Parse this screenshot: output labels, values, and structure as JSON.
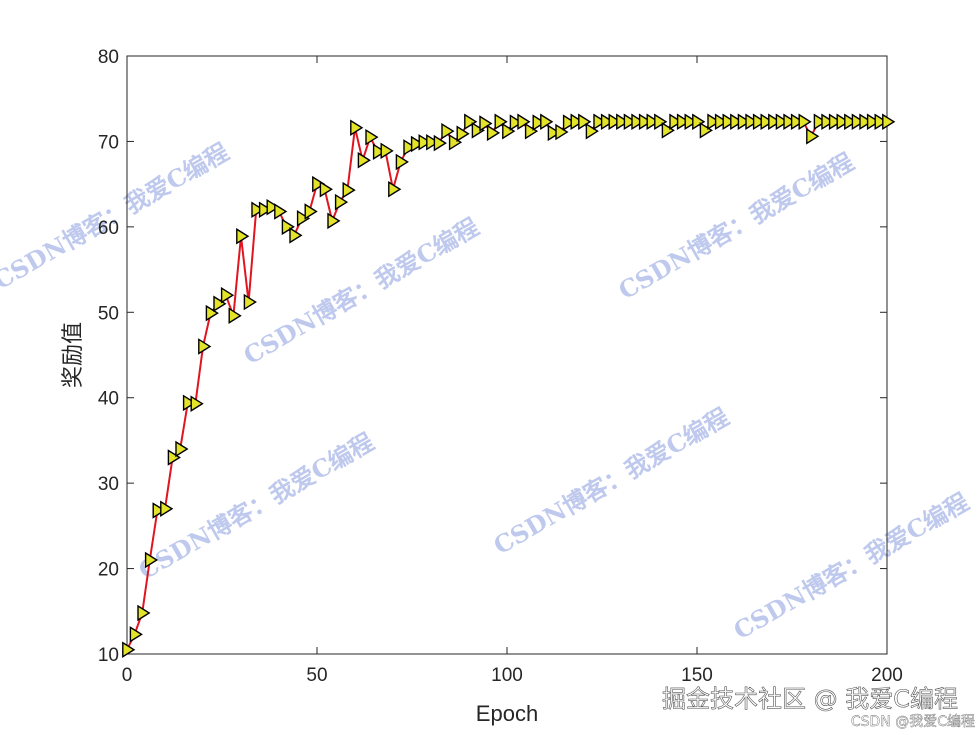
{
  "chart_data": {
    "type": "line",
    "title": "",
    "xlabel": "Epoch",
    "ylabel": "奖励值",
    "xlim": [
      0,
      200
    ],
    "ylim": [
      10,
      80
    ],
    "xticks": [
      "0",
      "50",
      "100",
      "150",
      "200"
    ],
    "yticks": [
      "10",
      "20",
      "30",
      "40",
      "50",
      "60",
      "70",
      "80"
    ],
    "grid": false,
    "line_color": "#e0151f",
    "marker": "triangle-right",
    "marker_fill": "#e3e32a",
    "marker_edge": "#000000",
    "series": [
      {
        "x": [
          0,
          2,
          4,
          6,
          8,
          10,
          12,
          14,
          16,
          18,
          20,
          22,
          24,
          26,
          28,
          30,
          32,
          34,
          36,
          38,
          40,
          42,
          44,
          46,
          48,
          50,
          52,
          54,
          56,
          58,
          60,
          62,
          64,
          66,
          68,
          70,
          72,
          74,
          76,
          78,
          80,
          82,
          84,
          86,
          88,
          90,
          92,
          94,
          96,
          98,
          100,
          102,
          104,
          106,
          108,
          110,
          112,
          114,
          116,
          118,
          120,
          122,
          124,
          126,
          128,
          130,
          132,
          134,
          136,
          138,
          140,
          142,
          144,
          146,
          148,
          150,
          152,
          154,
          156,
          158,
          160,
          162,
          164,
          166,
          168,
          170,
          172,
          174,
          176,
          178,
          180,
          182,
          184,
          186,
          188,
          190,
          192,
          194,
          196,
          198,
          200
        ],
        "y": [
          10.5,
          12.3,
          14.8,
          21,
          26.8,
          27,
          33,
          34,
          39.4,
          39.3,
          46,
          49.9,
          51,
          52,
          49.6,
          58.9,
          51.2,
          62,
          62,
          62.3,
          61.8,
          60,
          59,
          61,
          61.8,
          65,
          64.4,
          60.7,
          62.9,
          64.3,
          71.6,
          67.8,
          70.5,
          68.8,
          68.9,
          64.4,
          67.6,
          69.3,
          69.7,
          69.9,
          69.9,
          69.8,
          71.2,
          69.9,
          70.9,
          72.3,
          71.3,
          72.1,
          71.0,
          72.3,
          71.2,
          72.2,
          72.3,
          71.2,
          72.2,
          72.3,
          71.0,
          71.1,
          72.2,
          72.3,
          72.3,
          71.2,
          72.3,
          72.3,
          72.3,
          72.3,
          72.3,
          72.3,
          72.3,
          72.3,
          72.3,
          71.3,
          72.3,
          72.3,
          72.3,
          72.3,
          71.3,
          72.3,
          72.3,
          72.3,
          72.3,
          72.3,
          72.3,
          72.3,
          72.3,
          72.3,
          72.3,
          72.3,
          72.3,
          72.3,
          70.6,
          72.3,
          72.3,
          72.3,
          72.3,
          72.3,
          72.3,
          72.3,
          72.3,
          72.3,
          72.3
        ]
      }
    ]
  },
  "watermarks": [
    "CSDN博客：我爱C编程",
    "CSDN博客：我爱C编程",
    "CSDN博客：我爱C编程",
    "CSDN博客：我爱C编程",
    "CSDN博客：我爱C编程",
    "CSDN博客：我爱C编程"
  ],
  "footer": {
    "main": "掘金技术社区 @ 我爱C编程",
    "sub": "CSDN @我爱C编程"
  }
}
